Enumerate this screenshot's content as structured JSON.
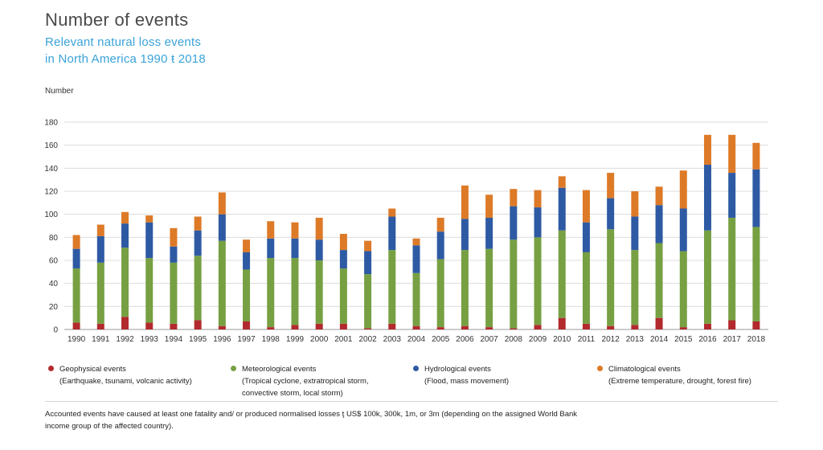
{
  "header": {
    "title": "Number of events",
    "subtitle_line1": "Relevant natural loss events",
    "subtitle_line2": "in North America 1990 ŧ 2018"
  },
  "chart_data": {
    "type": "bar",
    "stacked": true,
    "ylabel": "Number",
    "ylim": [
      0,
      180
    ],
    "yticks": [
      0,
      20,
      40,
      60,
      80,
      100,
      120,
      140,
      160,
      180
    ],
    "grid": true,
    "legend_position": "bottom",
    "categories": [
      "1990",
      "1991",
      "1992",
      "1993",
      "1994",
      "1995",
      "1996",
      "1997",
      "1998",
      "1999",
      "2000",
      "2001",
      "2002",
      "2003",
      "2004",
      "2005",
      "2006",
      "2007",
      "2008",
      "2009",
      "2010",
      "2011",
      "2012",
      "2013",
      "2014",
      "2015",
      "2016",
      "2017",
      "2018"
    ],
    "series": [
      {
        "name": "Geophysical events",
        "description": "(Earthquake, tsunami, volcanic activity)",
        "color": "#b22a2e",
        "values": [
          6,
          5,
          11,
          6,
          5,
          8,
          3,
          7,
          2,
          4,
          5,
          5,
          1,
          5,
          3,
          2,
          3,
          2,
          1,
          4,
          10,
          5,
          3,
          4,
          10,
          2,
          5,
          8,
          7
        ]
      },
      {
        "name": "Meteorological events",
        "description": [
          "(Tropical cyclone, extratropical storm,",
          "convective storm, local storm)"
        ],
        "color": "#77a043",
        "values": [
          47,
          53,
          60,
          56,
          53,
          56,
          74,
          45,
          60,
          58,
          55,
          48,
          47,
          64,
          46,
          59,
          66,
          68,
          77,
          76,
          76,
          62,
          84,
          65,
          65,
          66,
          81,
          89,
          82
        ]
      },
      {
        "name": "Hydrological events",
        "description": "(Flood, mass movement)",
        "color": "#2e5aa4",
        "values": [
          17,
          23,
          21,
          31,
          14,
          22,
          23,
          15,
          17,
          17,
          18,
          16,
          20,
          29,
          24,
          24,
          27,
          27,
          29,
          26,
          37,
          26,
          27,
          29,
          33,
          37,
          57,
          39,
          50
        ]
      },
      {
        "name": "Climatological events",
        "description": "(Extreme temperature, drought, forest fire)",
        "color": "#dd7a28",
        "values": [
          12,
          10,
          10,
          6,
          16,
          12,
          19,
          11,
          15,
          14,
          19,
          14,
          9,
          7,
          6,
          12,
          29,
          20,
          15,
          15,
          10,
          28,
          22,
          22,
          16,
          33,
          26,
          33,
          23
        ]
      }
    ]
  },
  "footnote": {
    "line1": "Accounted events have caused at least one fatality and/ or produced normalised losses ţ  US$ 100k, 300k, 1m, or 3m (depending on the assigned World Bank",
    "line2": "income group of the affected country)."
  }
}
